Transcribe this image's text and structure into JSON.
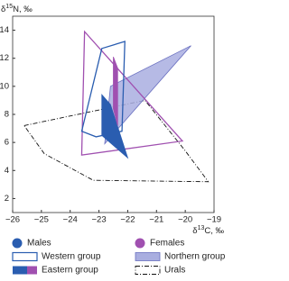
{
  "chart_data": {
    "type": "polygon",
    "x_label": [
      "δ",
      "13",
      "C, ‰"
    ],
    "y_label": [
      "δ",
      "15",
      "N, ‰"
    ],
    "xlim": [
      -26,
      -19
    ],
    "ylim": [
      1,
      15
    ],
    "xticks": [
      {
        "value": -26,
        "label": "−26"
      },
      {
        "value": -25,
        "label": "−25"
      },
      {
        "value": -24,
        "label": "−24"
      },
      {
        "value": -23,
        "label": "−23"
      },
      {
        "value": -22,
        "label": "−22"
      },
      {
        "value": -21,
        "label": "−21"
      },
      {
        "value": -20,
        "label": "−20"
      },
      {
        "value": -19,
        "label": "−19"
      }
    ],
    "yticks": [
      2,
      4,
      6,
      8,
      10,
      12,
      14
    ],
    "series": [
      {
        "style": "dashdot",
        "color": "#111111",
        "x": [
          -25.6,
          -21.4,
          -20.0,
          -19.2,
          -23.2,
          -24.9
        ],
        "y": [
          7.2,
          9.0,
          5.4,
          3.2,
          3.3,
          5.2
        ]
      },
      {
        "style": "fill",
        "color": "#a9aee0",
        "x": [
          -19.8,
          -22.6,
          -22.8
        ],
        "y": [
          12.9,
          10.0,
          5.9
        ]
      },
      {
        "style": "outline",
        "color": "#a050b0",
        "x": [
          -23.5,
          -20.1,
          -23.6
        ],
        "y": [
          13.9,
          6.1,
          5.1
        ]
      },
      {
        "style": "outline",
        "color": "#2a5db0",
        "x": [
          -22.9,
          -22.1,
          -22.2,
          -23.1,
          -23.6
        ],
        "y": [
          12.7,
          13.2,
          6.8,
          6.4,
          6.8
        ]
      },
      {
        "style": "fill",
        "color": "#2a5db0",
        "x": [
          -22.9,
          -22.6,
          -22.0,
          -22.9
        ],
        "y": [
          9.4,
          8.7,
          4.9,
          6.5
        ]
      },
      {
        "style": "fill",
        "color": "#a050b0",
        "x": [
          -22.5,
          -22.35,
          -22.35,
          -22.5
        ],
        "y": [
          12.1,
          11.3,
          7.2,
          8.4
        ]
      }
    ],
    "legend": [
      "Males",
      "Females",
      "Western group",
      "Northern group",
      "Eastern group",
      "Urals"
    ]
  }
}
